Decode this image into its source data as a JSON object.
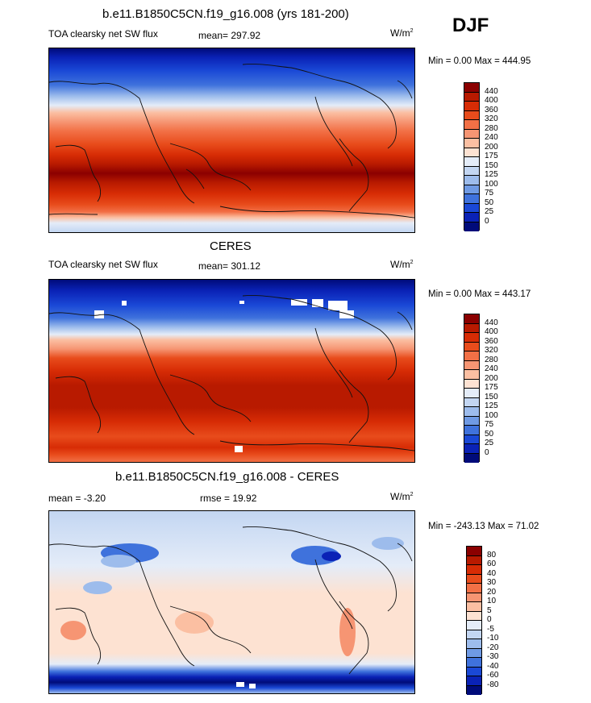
{
  "season_label": "DJF",
  "panels": [
    {
      "title": "b.e11.B1850C5CN.f19_g16.008 (yrs 181-200)",
      "left_label": "TOA clearsky net SW flux",
      "center_label": "mean= 297.92",
      "units": "W/m",
      "units_sup": "2",
      "minmax": "Min =   0.00 Max = 444.95",
      "colorbar": {
        "ticks": [
          "440",
          "400",
          "360",
          "320",
          "280",
          "240",
          "200",
          "175",
          "150",
          "125",
          "100",
          "75",
          "50",
          "25",
          "0"
        ],
        "colors": [
          "#8b0000",
          "#b81a00",
          "#d72c05",
          "#e84c1c",
          "#f27046",
          "#f69573",
          "#fbbfa2",
          "#fde2d2",
          "#e4ecf8",
          "#c3d6f2",
          "#9dbcec",
          "#6f9ae4",
          "#3f72dc",
          "#1a48d6",
          "#0a22b6",
          "#000b7a"
        ]
      }
    },
    {
      "title": "CERES",
      "left_label": "TOA clearsky net SW flux",
      "center_label": "mean= 301.12",
      "units": "W/m",
      "units_sup": "2",
      "minmax": "Min =   0.00 Max = 443.17",
      "colorbar": {
        "ticks": [
          "440",
          "400",
          "360",
          "320",
          "280",
          "240",
          "200",
          "175",
          "150",
          "125",
          "100",
          "75",
          "50",
          "25",
          "0"
        ],
        "colors": [
          "#8b0000",
          "#b81a00",
          "#d72c05",
          "#e84c1c",
          "#f27046",
          "#f69573",
          "#fbbfa2",
          "#fde2d2",
          "#e4ecf8",
          "#c3d6f2",
          "#9dbcec",
          "#6f9ae4",
          "#3f72dc",
          "#1a48d6",
          "#0a22b6",
          "#000b7a"
        ]
      }
    },
    {
      "title": "b.e11.B1850C5CN.f19_g16.008 - CERES",
      "left_label": "mean =  -3.20",
      "center_label": "rmse =  19.92",
      "units": "W/m",
      "units_sup": "2",
      "minmax": "Min = -243.13 Max =  71.02",
      "colorbar": {
        "ticks": [
          "80",
          "60",
          "40",
          "30",
          "20",
          "10",
          "5",
          "0",
          "-5",
          "-10",
          "-20",
          "-30",
          "-40",
          "-60",
          "-80"
        ],
        "colors": [
          "#8b0000",
          "#b81a00",
          "#d72c05",
          "#e84c1c",
          "#f27046",
          "#f69573",
          "#fbbfa2",
          "#fde2d2",
          "#e4ecf8",
          "#c3d6f2",
          "#9dbcec",
          "#6f9ae4",
          "#3f72dc",
          "#1a48d6",
          "#0a22b6",
          "#000b7a"
        ]
      }
    }
  ]
}
